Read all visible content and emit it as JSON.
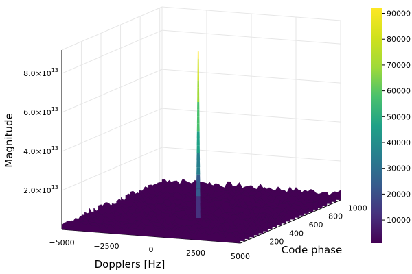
{
  "chart_data": {
    "type": "surface",
    "xlabel": "Dopplers [Hz]",
    "ylabel": "Code phase",
    "zlabel": "Magnitude",
    "x_ticks": [
      "−5000",
      "−2500",
      "0",
      "2500",
      "5000"
    ],
    "x_tick_values": [
      -5000,
      -2500,
      0,
      2500,
      5000
    ],
    "y_ticks": [
      "200",
      "400",
      "600",
      "800",
      "1000"
    ],
    "y_tick_values": [
      200,
      400,
      600,
      800,
      1000
    ],
    "z_ticks": [
      {
        "mantissa": "2.0×10",
        "exp": "13",
        "value": 20000000000000.0
      },
      {
        "mantissa": "4.0×10",
        "exp": "13",
        "value": 40000000000000.0
      },
      {
        "mantissa": "6.0×10",
        "exp": "13",
        "value": 60000000000000.0
      },
      {
        "mantissa": "8.0×10",
        "exp": "13",
        "value": 80000000000000.0
      }
    ],
    "xlim": [
      -5000,
      5000
    ],
    "ylim": [
      1,
      1023
    ],
    "zlim": [
      0,
      92000000000000.0
    ],
    "noise_floor": 4000000000000.0,
    "peak": {
      "doppler": 1000,
      "code_phase": 300,
      "magnitude": 89000000000000.0
    },
    "colormap": "viridis",
    "colorbar": {
      "ticks": [
        "10000",
        "20000",
        "30000",
        "40000",
        "50000",
        "60000",
        "70000",
        "80000",
        "90000"
      ],
      "tick_values": [
        10000,
        20000,
        30000,
        40000,
        50000,
        60000,
        70000,
        80000,
        90000
      ],
      "range": [
        1000,
        92000
      ]
    },
    "grid": true,
    "legend": "none"
  }
}
